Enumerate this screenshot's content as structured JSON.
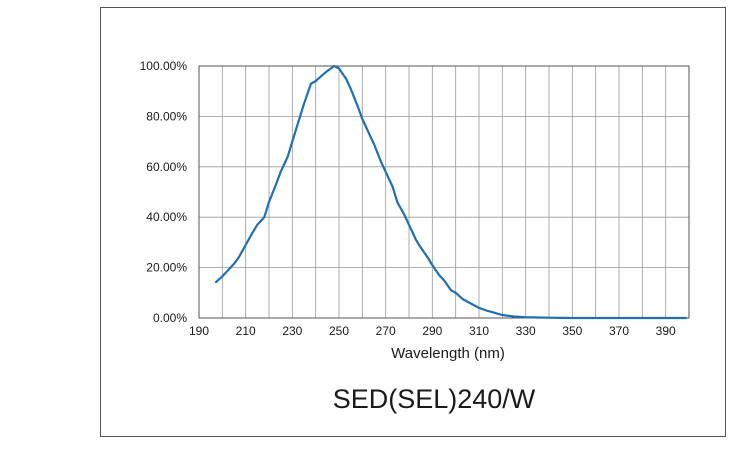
{
  "chart_data": {
    "type": "line",
    "title": "SED(SEL)240/W",
    "xlabel": "Wavelength (nm)",
    "ylabel": "",
    "xlim": [
      190,
      400
    ],
    "ylim": [
      0,
      100
    ],
    "x_ticks": [
      190,
      210,
      230,
      250,
      270,
      290,
      310,
      330,
      350,
      370,
      390
    ],
    "y_ticks": [
      0,
      20,
      40,
      60,
      80,
      100
    ],
    "y_tick_labels": [
      "0.00%",
      "20.00%",
      "40.00%",
      "60.00%",
      "80.00%",
      "100.00%"
    ],
    "grid": true,
    "line_color": "#1f6fb4",
    "series": [
      {
        "x": [
          197,
          200,
          203,
          205,
          207,
          210,
          213,
          215,
          218,
          220,
          223,
          225,
          228,
          230,
          233,
          235,
          238,
          240,
          243,
          245,
          248,
          250,
          253,
          255,
          258,
          260,
          263,
          265,
          268,
          270,
          273,
          275,
          278,
          280,
          283,
          285,
          288,
          290,
          293,
          295,
          298,
          300,
          303,
          305,
          308,
          310,
          313,
          315,
          318,
          320,
          325,
          330,
          335,
          340,
          345,
          350,
          360,
          370,
          380,
          390,
          399
        ],
        "y": [
          14,
          16.5,
          19.5,
          21.5,
          24,
          29,
          34,
          37,
          40,
          46,
          53,
          58,
          64,
          70,
          79,
          85,
          93,
          94,
          96.5,
          98,
          100,
          99,
          95,
          91,
          84,
          79,
          73,
          69,
          62,
          58,
          52,
          46,
          41,
          37,
          31,
          28,
          24,
          21,
          17,
          15,
          11,
          10,
          7.5,
          6.5,
          5,
          4,
          3,
          2.5,
          1.7,
          1.2,
          0.6,
          0.3,
          0.2,
          0.1,
          0.05,
          0,
          0,
          0,
          0,
          0,
          0
        ]
      }
    ]
  }
}
